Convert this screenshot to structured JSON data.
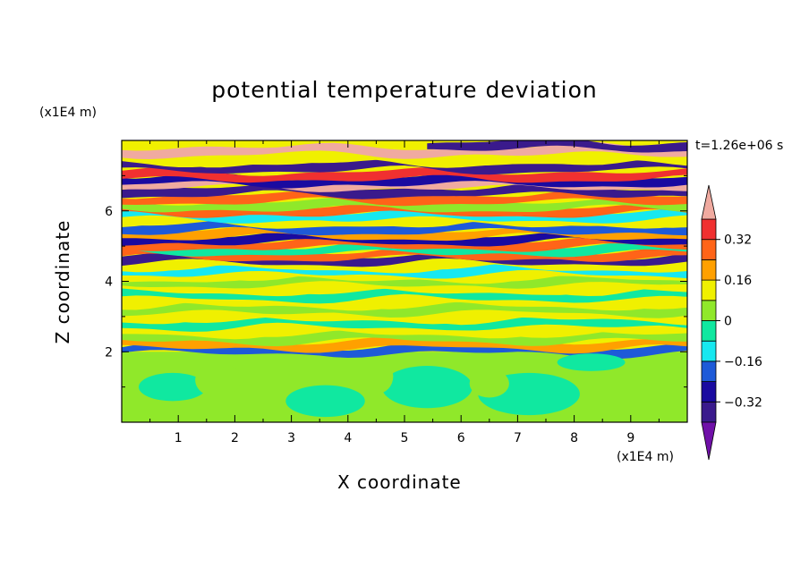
{
  "chart_data": {
    "type": "heatmap",
    "title": "potential temperature deviation",
    "xlabel": "X coordinate",
    "ylabel": "Z coordinate",
    "x_unit": "(x1E4 m)",
    "z_unit": "(x1E4 m)",
    "time_label": "t=1.26e+06 s",
    "xlim": [
      0,
      10
    ],
    "ylim": [
      0,
      8
    ],
    "x_ticks": [
      1,
      2,
      3,
      4,
      5,
      6,
      7,
      8,
      9
    ],
    "y_ticks": [
      2,
      4,
      6
    ],
    "colorbar": {
      "levels": [
        -0.4,
        -0.32,
        -0.24,
        -0.16,
        -0.08,
        0,
        0.08,
        0.16,
        0.24,
        0.32,
        0.4
      ],
      "tick_values": [
        0.32,
        0.16,
        0,
        -0.16,
        -0.32
      ],
      "tick_labels": [
        "0.32",
        "0.16",
        "0",
        "−0.16",
        "−0.32"
      ],
      "colors": [
        "#3a1a8c",
        "#1a0aa0",
        "#1e5ad8",
        "#17e8f0",
        "#10e8a0",
        "#90e82a",
        "#f0f000",
        "#ffa000",
        "#ff6418",
        "#f03030"
      ],
      "over_color": "#f0aaa0",
      "under_color": "#7010a8"
    },
    "bands": [
      {
        "z": 7.85,
        "v": -0.4,
        "xr": [
          5.4,
          10
        ]
      },
      {
        "z": 7.7,
        "v": 0.4
      },
      {
        "z": 7.45,
        "v": 0.1
      },
      {
        "z": 7.25,
        "v": -0.4
      },
      {
        "z": 7.0,
        "v": 0.35
      },
      {
        "z": 6.85,
        "v": -0.3
      },
      {
        "z": 6.75,
        "v": 0.4
      },
      {
        "z": 6.55,
        "v": -0.4
      },
      {
        "z": 6.35,
        "v": 0.3
      },
      {
        "z": 6.15,
        "v": 0.05
      },
      {
        "z": 6.0,
        "v": 0.3
      },
      {
        "z": 5.85,
        "v": -0.12
      },
      {
        "z": 5.7,
        "v": 0.1
      },
      {
        "z": 5.5,
        "v": -0.2
      },
      {
        "z": 5.35,
        "v": 0.2
      },
      {
        "z": 5.2,
        "v": -0.3
      },
      {
        "z": 5.05,
        "v": 0.3
      },
      {
        "z": 4.9,
        "v": -0.08
      },
      {
        "z": 4.75,
        "v": 0.25
      },
      {
        "z": 4.62,
        "v": -0.38
      },
      {
        "z": 4.45,
        "v": 0.15
      },
      {
        "z": 4.3,
        "v": -0.15
      },
      {
        "z": 4.15,
        "v": 0.08
      },
      {
        "z": 4.0,
        "v": 0.0
      },
      {
        "z": 3.8,
        "v": 0.12
      },
      {
        "z": 3.6,
        "v": -0.05
      },
      {
        "z": 3.4,
        "v": 0.1
      },
      {
        "z": 3.2,
        "v": 0.02
      },
      {
        "z": 3.0,
        "v": 0.14
      },
      {
        "z": 2.8,
        "v": -0.04
      },
      {
        "z": 2.6,
        "v": 0.12
      },
      {
        "z": 2.4,
        "v": 0.05
      },
      {
        "z": 2.2,
        "v": 0.16
      },
      {
        "z": 2.05,
        "v": -0.18
      }
    ],
    "lower_region": {
      "z_top": 2.0,
      "v": 0.04
    },
    "blobs": [
      {
        "x": 0.9,
        "z": 1.0,
        "rx": 0.6,
        "rz": 0.4,
        "v": -0.02
      },
      {
        "x": 3.6,
        "z": 0.6,
        "rx": 0.7,
        "rz": 0.45,
        "v": -0.02
      },
      {
        "x": 5.4,
        "z": 1.0,
        "rx": 0.8,
        "rz": 0.6,
        "v": -0.02
      },
      {
        "x": 7.2,
        "z": 0.8,
        "rx": 0.9,
        "rz": 0.6,
        "v": -0.02
      },
      {
        "x": 8.3,
        "z": 1.7,
        "rx": 0.6,
        "rz": 0.25,
        "v": -0.02
      },
      {
        "x": 1.7,
        "z": 1.2,
        "rx": 0.4,
        "rz": 0.5,
        "v": 0.06
      },
      {
        "x": 4.5,
        "z": 1.3,
        "rx": 0.3,
        "rz": 0.5,
        "v": 0.06
      },
      {
        "x": 6.5,
        "z": 1.1,
        "rx": 0.35,
        "rz": 0.4,
        "v": 0.06
      },
      {
        "x": 9.0,
        "z": 1.0,
        "rx": 0.5,
        "rz": 0.6,
        "v": 0.06
      }
    ]
  }
}
